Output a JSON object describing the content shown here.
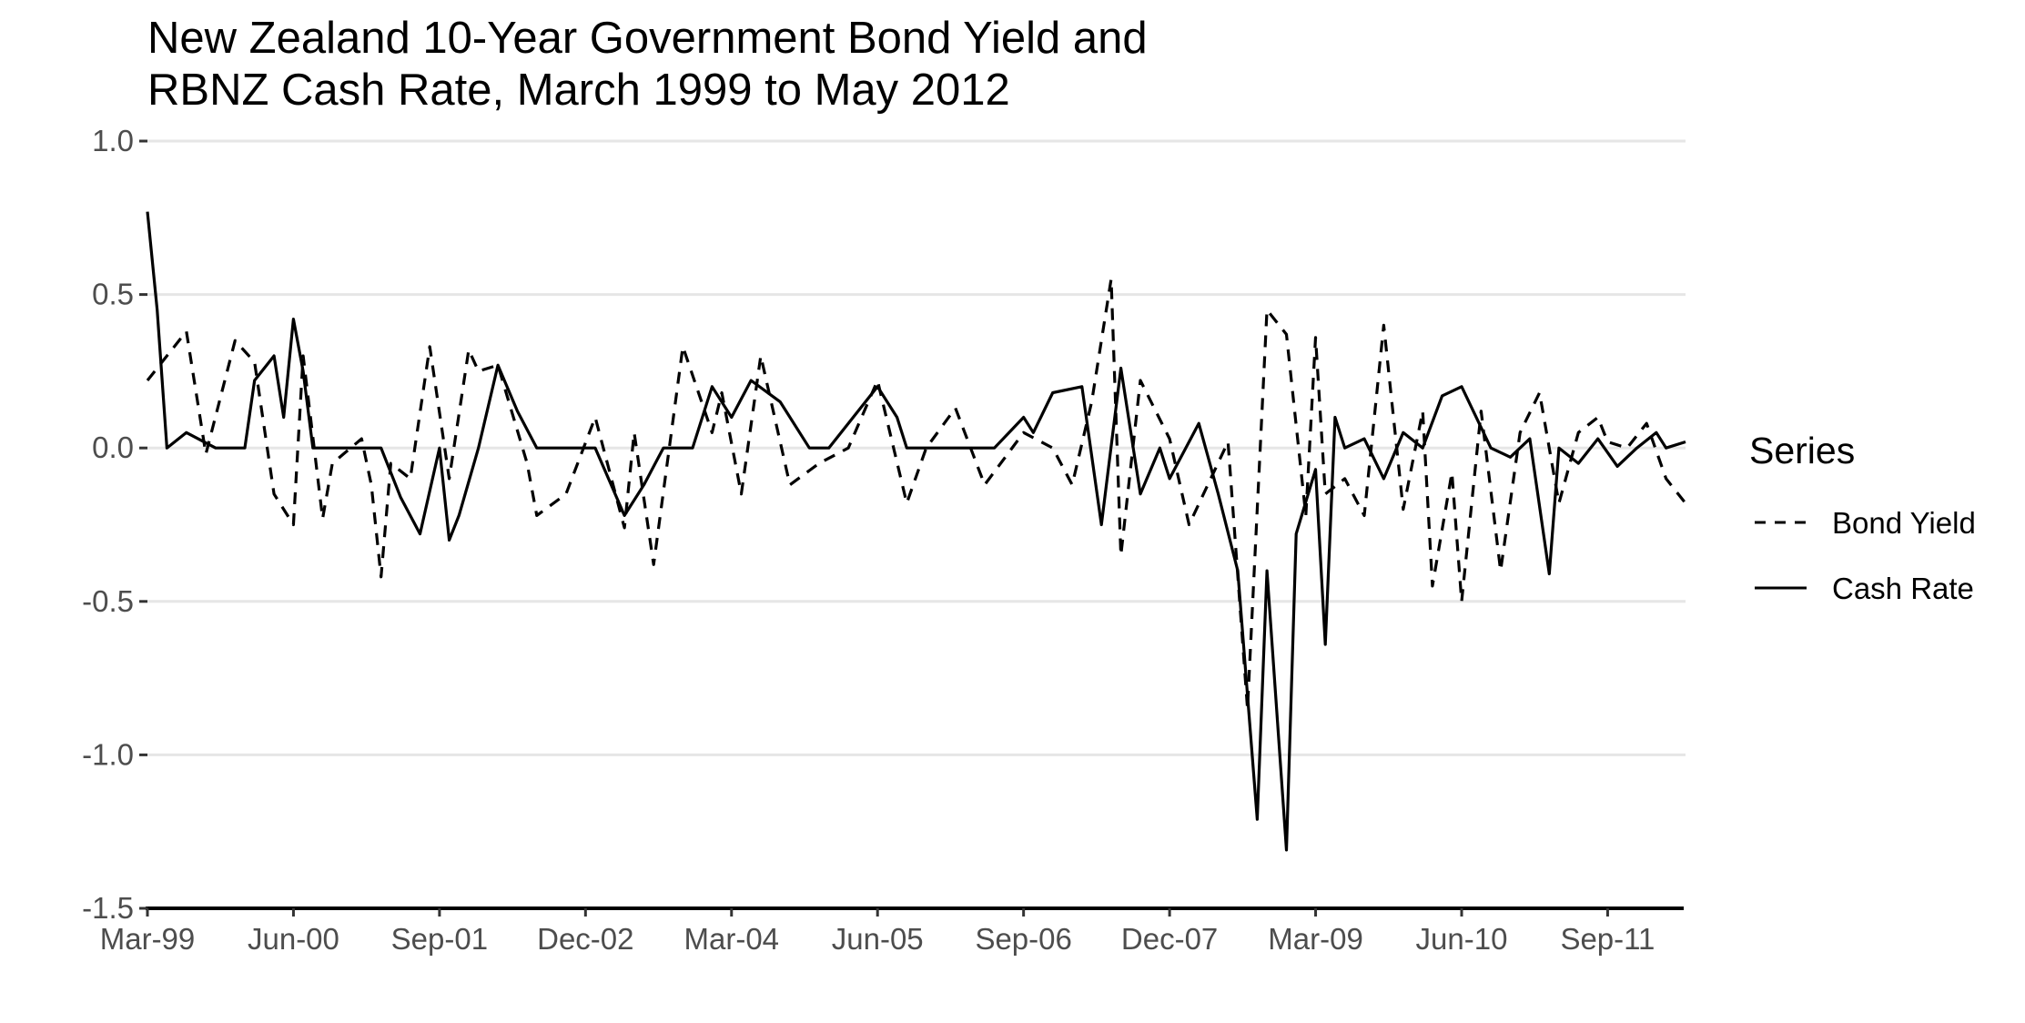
{
  "chart_data": {
    "type": "line",
    "title": "New Zealand 10-Year Government Bond Yield and\n RBNZ Cash Rate, March 1999 to May 2012",
    "xlabel": "",
    "ylabel": "",
    "ylim": [
      -1.5,
      1.0
    ],
    "yticks": [
      "1.0",
      "0.5",
      "0.0",
      "-0.5",
      "-1.0",
      "-1.5"
    ],
    "ytick_values": [
      1.0,
      0.5,
      0.0,
      -0.5,
      -1.0,
      -1.5
    ],
    "x_start": "Mar-99",
    "x_end": "May-12",
    "xticks": [
      "Mar-99",
      "Jun-00",
      "Sep-01",
      "Dec-02",
      "Mar-04",
      "Jun-05",
      "Sep-06",
      "Dec-07",
      "Mar-09",
      "Jun-10",
      "Sep-11"
    ],
    "grid": "horizontal",
    "legend": {
      "title": "Series",
      "position": "right"
    },
    "series": [
      {
        "name": "Bond Yield",
        "line_style": "dashed",
        "x": [
          "Mar-99",
          "Jul-99",
          "Sep-99",
          "Dec-99",
          "Feb-00",
          "Apr-00",
          "Jun-00",
          "Jul-00",
          "Sep-00",
          "Oct-00",
          "Jan-01",
          "Feb-01",
          "Mar-01",
          "Apr-01",
          "Jun-01",
          "Aug-01",
          "Oct-01",
          "Dec-01",
          "Jan-02",
          "Mar-02",
          "Jun-02",
          "Jul-02",
          "Oct-02",
          "Jan-03",
          "Apr-03",
          "May-03",
          "Jul-03",
          "Oct-03",
          "Jan-04",
          "Feb-04",
          "Apr-04",
          "Jun-04",
          "Sep-04",
          "Dec-04",
          "Mar-05",
          "Jun-05",
          "Sep-05",
          "Nov-05",
          "Feb-06",
          "May-06",
          "Sep-06",
          "Dec-06",
          "Feb-07",
          "Apr-07",
          "Jun-07",
          "Jul-07",
          "Sep-07",
          "Dec-07",
          "Feb-08",
          "Jun-08",
          "Aug-08",
          "Oct-08",
          "Dec-08",
          "Feb-09",
          "Mar-09",
          "Apr-09",
          "Jun-09",
          "Aug-09",
          "Oct-09",
          "Dec-09",
          "Feb-10",
          "Mar-10",
          "May-10",
          "Jun-10",
          "Aug-10",
          "Oct-10",
          "Dec-10",
          "Feb-11",
          "Apr-11",
          "Jun-11",
          "Aug-11",
          "Sep-11",
          "Nov-11",
          "Jan-12",
          "Mar-12",
          "May-12"
        ],
        "values": [
          0.22,
          0.38,
          -0.02,
          0.35,
          0.28,
          -0.15,
          -0.25,
          0.3,
          -0.23,
          -0.05,
          0.03,
          -0.12,
          -0.42,
          -0.05,
          -0.1,
          0.33,
          -0.1,
          0.32,
          0.25,
          0.27,
          -0.05,
          -0.22,
          -0.15,
          0.1,
          -0.26,
          0.05,
          -0.38,
          0.33,
          0.05,
          0.18,
          -0.15,
          0.3,
          -0.12,
          -0.05,
          0.0,
          0.22,
          -0.18,
          0.0,
          0.13,
          -0.12,
          0.05,
          0.0,
          -0.12,
          0.15,
          0.55,
          -0.35,
          0.22,
          0.03,
          -0.25,
          0.02,
          -0.85,
          0.45,
          0.37,
          -0.22,
          0.36,
          -0.15,
          -0.1,
          -0.22,
          0.4,
          -0.2,
          0.12,
          -0.45,
          -0.08,
          -0.5,
          0.12,
          -0.4,
          0.05,
          0.18,
          -0.18,
          0.05,
          0.1,
          0.02,
          0.0,
          0.08,
          -0.1,
          -0.18
        ]
      },
      {
        "name": "Cash Rate",
        "line_style": "solid",
        "x": [
          "Mar-99",
          "Apr-99",
          "May-99",
          "Jul-99",
          "Oct-99",
          "Jan-00",
          "Feb-00",
          "Apr-00",
          "May-00",
          "Jun-00",
          "Jul-00",
          "Aug-00",
          "Jan-01",
          "Mar-01",
          "May-01",
          "Jul-01",
          "Sep-01",
          "Oct-01",
          "Nov-01",
          "Jan-02",
          "Mar-02",
          "May-02",
          "Jul-02",
          "Oct-02",
          "Jan-03",
          "Apr-03",
          "Jun-03",
          "Aug-03",
          "Nov-03",
          "Jan-04",
          "Mar-04",
          "May-04",
          "Aug-04",
          "Nov-04",
          "Jan-05",
          "Jun-05",
          "Aug-05",
          "Sep-05",
          "Nov-05",
          "Jan-06",
          "Mar-06",
          "Jun-06",
          "Sep-06",
          "Oct-06",
          "Dec-06",
          "Mar-07",
          "May-07",
          "Jul-07",
          "Sep-07",
          "Nov-07",
          "Dec-07",
          "Mar-08",
          "May-08",
          "Jul-08",
          "Sep-08",
          "Oct-08",
          "Dec-08",
          "Jan-09",
          "Mar-09",
          "Apr-09",
          "May-09",
          "Jun-09",
          "Aug-09",
          "Oct-09",
          "Dec-09",
          "Feb-10",
          "Apr-10",
          "Jun-10",
          "Sep-10",
          "Nov-10",
          "Jan-11",
          "Mar-11",
          "Apr-11",
          "Jun-11",
          "Aug-11",
          "Oct-11",
          "Dec-11",
          "Feb-12",
          "Mar-12",
          "May-12"
        ],
        "values": [
          0.77,
          0.45,
          0.0,
          0.05,
          0.0,
          0.0,
          0.22,
          0.3,
          0.1,
          0.42,
          0.25,
          0.0,
          0.0,
          0.0,
          -0.16,
          -0.28,
          0.0,
          -0.3,
          -0.22,
          0.0,
          0.27,
          0.12,
          0.0,
          0.0,
          0.0,
          -0.22,
          -0.12,
          0.0,
          0.0,
          0.2,
          0.1,
          0.22,
          0.15,
          0.0,
          0.0,
          0.2,
          0.1,
          0.0,
          0.0,
          0.0,
          0.0,
          0.0,
          0.1,
          0.05,
          0.18,
          0.2,
          -0.25,
          0.26,
          -0.15,
          0.0,
          -0.1,
          0.08,
          -0.15,
          -0.4,
          -1.21,
          -0.4,
          -1.31,
          -0.28,
          -0.07,
          -0.64,
          0.1,
          0.0,
          0.03,
          -0.1,
          0.05,
          0.0,
          0.17,
          0.2,
          0.0,
          -0.03,
          0.03,
          -0.41,
          0.0,
          -0.05,
          0.03,
          -0.06,
          0.0,
          0.05,
          0.0,
          0.02
        ]
      }
    ]
  }
}
